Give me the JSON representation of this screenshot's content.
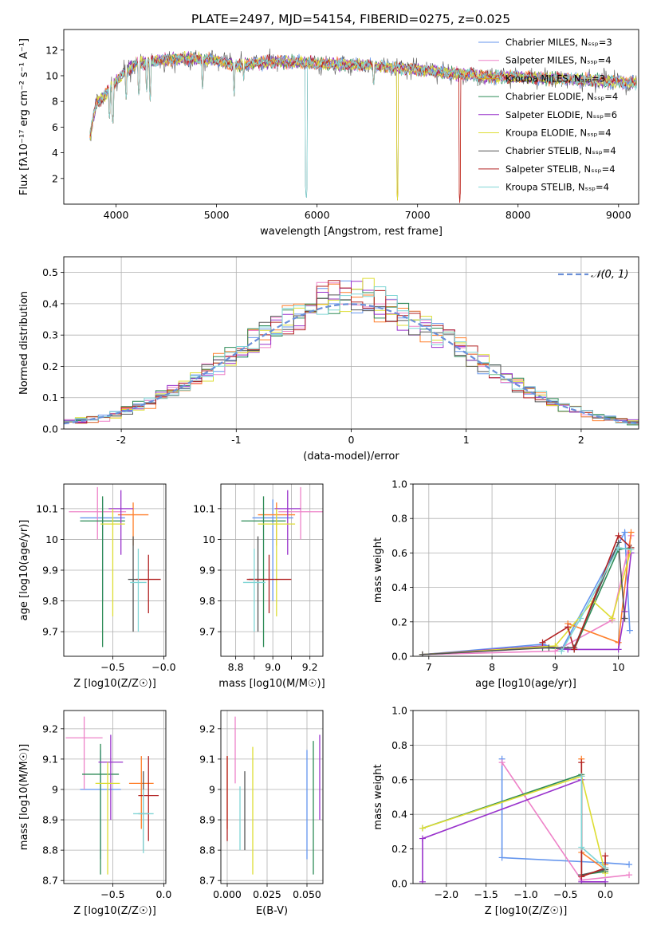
{
  "figure_title": "PLATE=2497, MJD=54154, FIBERID=0275, z=0.025",
  "colors": [
    "#6495ed",
    "#ee82c8",
    "#d2a01e",
    "#2e8b57",
    "#9932cc",
    "#dddd33",
    "#555555",
    "#b22222",
    "#7fd5d5"
  ],
  "colors_extra": {
    "orange": "#ff7f2a",
    "normal_curve": "#6a8fd8",
    "grid": "#b0b0b0"
  },
  "chart_data": [
    {
      "id": "spectrum",
      "type": "line",
      "title": "PLATE=2497, MJD=54154, FIBERID=0275, z=0.025",
      "xlabel": "wavelength [Angstrom, rest frame]",
      "ylabel": "Flux [fλ10⁻¹⁷ erg cm⁻² s⁻¹ A⁻¹]",
      "xlim": [
        3480,
        9200
      ],
      "ylim": [
        0,
        13.6
      ],
      "xticks": [
        4000,
        5000,
        6000,
        7000,
        8000,
        9000
      ],
      "yticks": [
        2,
        4,
        6,
        8,
        10,
        12
      ],
      "grid": false,
      "legend_loc": "upper right",
      "wavelength_range": [
        3740,
        9180
      ],
      "series": [
        {
          "name": "Chabrier MILES, N_SSP=3"
        },
        {
          "name": "Salpeter MILES, N_SSP=4"
        },
        {
          "name": "Kroupa MILES, N_SSP=3"
        },
        {
          "name": "Chabrier ELODIE, N_SSP=4"
        },
        {
          "name": "Salpeter ELODIE, N_SSP=6"
        },
        {
          "name": "Kroupa ELODIE, N_SSP=4"
        },
        {
          "name": "Chabrier STELIB, N_SSP=4"
        },
        {
          "name": "Salpeter STELIB, N_SSP=4"
        },
        {
          "name": "Kroupa STELIB, N_SSP=4"
        }
      ],
      "continuum": [
        [
          3740,
          5.2
        ],
        [
          3800,
          7.8
        ],
        [
          3900,
          8.6
        ],
        [
          4000,
          9.6
        ],
        [
          4100,
          10.3
        ],
        [
          4200,
          10.9
        ],
        [
          4300,
          11.0
        ],
        [
          4400,
          11.2
        ],
        [
          4600,
          11.3
        ],
        [
          4800,
          11.3
        ],
        [
          5000,
          11.2
        ],
        [
          5200,
          10.8
        ],
        [
          5400,
          11.0
        ],
        [
          5600,
          11.1
        ],
        [
          5900,
          11.0
        ],
        [
          6200,
          10.9
        ],
        [
          6500,
          10.8
        ],
        [
          6800,
          10.6
        ],
        [
          7000,
          10.5
        ],
        [
          7300,
          10.2
        ],
        [
          7500,
          10.1
        ],
        [
          7700,
          9.9
        ],
        [
          8000,
          9.9
        ],
        [
          8300,
          9.8
        ],
        [
          8600,
          9.7
        ],
        [
          8900,
          9.6
        ],
        [
          9180,
          9.4
        ]
      ],
      "dips": [
        [
          3934,
          6.5
        ],
        [
          3968,
          6.0
        ],
        [
          4101,
          8.0
        ],
        [
          4227,
          8.2
        ],
        [
          4304,
          8.6
        ],
        [
          4340,
          8.0
        ],
        [
          4861,
          8.8
        ],
        [
          5175,
          8.4
        ],
        [
          5270,
          9.6
        ],
        [
          5893,
          0.2
        ],
        [
          6563,
          9.0
        ],
        [
          6800,
          0.3
        ],
        [
          7420,
          0.1
        ],
        [
          7600,
          9.2
        ],
        [
          8542,
          9.0
        ],
        [
          8662,
          9.1
        ]
      ]
    },
    {
      "id": "residuals",
      "type": "histogram",
      "xlabel": "(data-model)/error",
      "ylabel": "Normed distribution",
      "xlim": [
        -2.5,
        2.5
      ],
      "ylim": [
        0,
        0.55
      ],
      "xticks": [
        -2,
        -1,
        0,
        1,
        2
      ],
      "yticks": [
        0.0,
        0.1,
        0.2,
        0.3,
        0.4,
        0.5
      ],
      "grid": true,
      "legend_loc": "upper right",
      "normal_label": "𝒩(0, 1)",
      "bin_edges_start": -2.6,
      "bin_width": 0.1,
      "n_bins": 52
    },
    {
      "id": "age_vs_Z",
      "type": "scatter_errorbar",
      "xlabel": "Z [log10(Z/Z☉)]",
      "ylabel": "age  [log10(age/yr)]",
      "xlim": [
        -0.98,
        0.02
      ],
      "ylim": [
        9.62,
        10.18
      ],
      "xticks": [
        -0.5,
        -0.0
      ],
      "xticklabels": [
        "−0.5",
        "−0.0"
      ],
      "yticks": [
        9.7,
        9.8,
        9.9,
        10.0,
        10.1
      ],
      "grid": true,
      "points": [
        {
          "x": -0.6,
          "y": 10.07,
          "xerr": 0.22,
          "ylo": 9.8,
          "yhi": 10.13
        },
        {
          "x": -0.65,
          "y": 10.09,
          "xerr": 0.28,
          "ylo": 10.0,
          "yhi": 10.17
        },
        {
          "x": -0.3,
          "y": 10.08,
          "xerr": 0.15,
          "ylo": 9.98,
          "yhi": 10.12
        },
        {
          "x": -0.6,
          "y": 10.06,
          "xerr": 0.22,
          "ylo": 9.65,
          "yhi": 10.14
        },
        {
          "x": -0.42,
          "y": 10.1,
          "xerr": 0.12,
          "ylo": 9.95,
          "yhi": 10.16
        },
        {
          "x": -0.5,
          "y": 10.05,
          "xerr": 0.12,
          "ylo": 9.75,
          "yhi": 10.1
        },
        {
          "x": -0.3,
          "y": 9.87,
          "xerr": 0.05,
          "ylo": 9.7,
          "yhi": 10.01
        },
        {
          "x": -0.15,
          "y": 9.87,
          "xerr": 0.12,
          "ylo": 9.76,
          "yhi": 9.95
        },
        {
          "x": -0.25,
          "y": 9.86,
          "xerr": 0.08,
          "ylo": 9.7,
          "yhi": 9.97
        }
      ]
    },
    {
      "id": "age_vs_mass",
      "type": "scatter_errorbar",
      "xlabel": "mass [log10(M/M☉)]",
      "ylabel": "",
      "xlim": [
        8.72,
        9.27
      ],
      "ylim": [
        9.62,
        10.18
      ],
      "xticks": [
        8.8,
        8.9,
        9.0,
        9.1,
        9.2
      ],
      "xticklabels": [
        "8.8",
        "",
        "9.0",
        "",
        "9.2"
      ],
      "yticks": [
        9.7,
        9.8,
        9.9,
        10.0,
        10.1
      ],
      "grid": true,
      "points": [
        {
          "x": 9.0,
          "y": 10.07,
          "xerr": 0.11,
          "ylo": 9.8,
          "yhi": 10.13
        },
        {
          "x": 9.15,
          "y": 10.09,
          "xerr": 0.12,
          "ylo": 10.0,
          "yhi": 10.17
        },
        {
          "x": 9.02,
          "y": 10.08,
          "xerr": 0.1,
          "ylo": 9.98,
          "yhi": 10.12
        },
        {
          "x": 8.95,
          "y": 10.06,
          "xerr": 0.12,
          "ylo": 9.65,
          "yhi": 10.14
        },
        {
          "x": 9.08,
          "y": 10.1,
          "xerr": 0.07,
          "ylo": 9.95,
          "yhi": 10.16
        },
        {
          "x": 9.02,
          "y": 10.05,
          "xerr": 0.1,
          "ylo": 9.75,
          "yhi": 10.1
        },
        {
          "x": 8.92,
          "y": 9.87,
          "xerr": 0.05,
          "ylo": 9.7,
          "yhi": 10.01
        },
        {
          "x": 8.98,
          "y": 9.87,
          "xerr": 0.12,
          "ylo": 9.76,
          "yhi": 9.95
        },
        {
          "x": 8.9,
          "y": 9.86,
          "xerr": 0.06,
          "ylo": 9.7,
          "yhi": 9.97
        }
      ]
    },
    {
      "id": "mass_weight_vs_age",
      "type": "line",
      "xlabel": "age  [log10(age/yr)]",
      "ylabel": "mass weight",
      "xlim": [
        6.75,
        10.32
      ],
      "ylim": [
        0,
        1.0
      ],
      "xticks": [
        7,
        8,
        9,
        10
      ],
      "yticks": [
        0.0,
        0.2,
        0.4,
        0.6,
        0.8,
        1.0
      ],
      "grid": true,
      "series": [
        {
          "x": [
            6.9,
            8.8,
            9.1,
            10.1,
            10.18
          ],
          "y": [
            0.01,
            0.07,
            0.04,
            0.72,
            0.15
          ]
        },
        {
          "x": [
            6.9,
            9.0,
            9.9,
            10.2
          ],
          "y": [
            0.01,
            0.03,
            0.21,
            0.7
          ]
        },
        {
          "x": [
            9.2,
            10.0,
            10.2
          ],
          "y": [
            0.19,
            0.08,
            0.72
          ]
        },
        {
          "x": [
            6.9,
            8.8,
            9.3,
            10.0,
            10.2
          ],
          "y": [
            0.01,
            0.05,
            0.04,
            0.62,
            0.63
          ]
        },
        {
          "x": [
            6.9,
            8.8,
            9.2,
            10.0,
            10.1,
            10.2
          ],
          "y": [
            0.01,
            0.06,
            0.04,
            0.04,
            0.26,
            0.6
          ]
        },
        {
          "x": [
            6.9,
            9.0,
            9.6,
            9.9,
            10.2
          ],
          "y": [
            0.01,
            0.06,
            0.32,
            0.22,
            0.62
          ]
        },
        {
          "x": [
            6.9,
            8.9,
            9.3,
            10.0,
            10.1
          ],
          "y": [
            0.01,
            0.05,
            0.05,
            0.66,
            0.22
          ]
        },
        {
          "x": [
            8.8,
            9.2,
            9.3,
            10.0,
            10.2
          ],
          "y": [
            0.08,
            0.17,
            0.04,
            0.7,
            0.63
          ]
        },
        {
          "x": [
            9.1,
            9.4,
            10.0,
            10.2
          ],
          "y": [
            0.03,
            0.22,
            0.63,
            0.62
          ]
        }
      ]
    },
    {
      "id": "mass_vs_Z",
      "type": "scatter_errorbar",
      "xlabel": "Z [log10(Z/Z☉)]",
      "ylabel": "mass [log10(M/M☉)]",
      "xlim": [
        -0.98,
        0.02
      ],
      "ylim": [
        8.69,
        9.26
      ],
      "xticks": [
        -0.5,
        0.0
      ],
      "xticklabels": [
        "−0.5",
        "0.0"
      ],
      "yticks": [
        8.7,
        8.8,
        8.9,
        9.0,
        9.1,
        9.2
      ],
      "grid": true,
      "points": [
        {
          "x": -0.62,
          "y": 9.0,
          "xerr": 0.2,
          "ylo": 8.77,
          "yhi": 9.13
        },
        {
          "x": -0.78,
          "y": 9.17,
          "xerr": 0.18,
          "ylo": 9.0,
          "yhi": 9.24
        },
        {
          "x": -0.22,
          "y": 9.02,
          "xerr": 0.12,
          "ylo": 8.87,
          "yhi": 9.11
        },
        {
          "x": -0.62,
          "y": 9.05,
          "xerr": 0.18,
          "ylo": 8.72,
          "yhi": 9.15
        },
        {
          "x": -0.52,
          "y": 9.09,
          "xerr": 0.12,
          "ylo": 8.9,
          "yhi": 9.18
        },
        {
          "x": -0.55,
          "y": 9.02,
          "xerr": 0.12,
          "ylo": 8.72,
          "yhi": 9.09
        },
        {
          "x": -0.2,
          "y": 8.92,
          "xerr": 0.05,
          "ylo": 8.8,
          "yhi": 9.06
        },
        {
          "x": -0.15,
          "y": 8.98,
          "xerr": 0.1,
          "ylo": 8.83,
          "yhi": 9.11
        },
        {
          "x": -0.2,
          "y": 8.92,
          "xerr": 0.1,
          "ylo": 8.79,
          "yhi": 9.0
        }
      ]
    },
    {
      "id": "mass_vs_ebv",
      "type": "scatter_errorbar",
      "xlabel": "E(B-V)",
      "ylabel": "",
      "xlim": [
        -0.004,
        0.06
      ],
      "ylim": [
        8.69,
        9.26
      ],
      "xticks": [
        0.0,
        0.025,
        0.05
      ],
      "xticklabels": [
        "0.000",
        "0.025",
        "0.050"
      ],
      "yticks": [
        8.7,
        8.8,
        8.9,
        9.0,
        9.1,
        9.2
      ],
      "grid": true,
      "points": [
        {
          "x": 0.05,
          "ylo": 8.77,
          "yhi": 9.13
        },
        {
          "x": 0.005,
          "ylo": 9.02,
          "yhi": 9.24
        },
        {
          "x": 0.0,
          "ylo": 8.87,
          "yhi": 9.11
        },
        {
          "x": 0.054,
          "ylo": 8.72,
          "yhi": 9.16
        },
        {
          "x": 0.058,
          "ylo": 8.9,
          "yhi": 9.18
        },
        {
          "x": 0.016,
          "ylo": 8.72,
          "yhi": 9.14
        },
        {
          "x": 0.011,
          "ylo": 8.8,
          "yhi": 9.06
        },
        {
          "x": 0.0,
          "ylo": 8.83,
          "yhi": 9.11
        },
        {
          "x": 0.008,
          "ylo": 8.8,
          "yhi": 9.01
        }
      ]
    },
    {
      "id": "mass_weight_vs_Z",
      "type": "line",
      "xlabel": "Z [log10(Z/Z☉)]",
      "ylabel": "mass weight",
      "xlim": [
        -2.42,
        0.42
      ],
      "ylim": [
        0,
        1.0
      ],
      "xticks": [
        -2.0,
        -1.5,
        -1.0,
        -0.5,
        0.0
      ],
      "xticklabels": [
        "−2.0",
        "−1.5",
        "−1.0",
        "−0.5",
        "0.0"
      ],
      "yticks": [
        0.0,
        0.2,
        0.4,
        0.6,
        0.8,
        1.0
      ],
      "grid": true,
      "series": [
        {
          "x": [
            -1.3,
            -1.3,
            0.0,
            0.3
          ],
          "y": [
            0.72,
            0.15,
            0.12,
            0.11
          ]
        },
        {
          "x": [
            -1.3,
            -0.3,
            0.3
          ],
          "y": [
            0.7,
            0.02,
            0.05
          ]
        },
        {
          "x": [
            -0.3,
            -0.3,
            0.0,
            0.0
          ],
          "y": [
            0.72,
            0.18,
            0.08,
            0.11
          ]
        },
        {
          "x": [
            -2.3,
            -0.3,
            -0.3,
            0.0
          ],
          "y": [
            0.32,
            0.63,
            0.05,
            0.07
          ]
        },
        {
          "x": [
            -2.3,
            -2.3,
            -0.3,
            -0.3,
            0.0
          ],
          "y": [
            0.01,
            0.26,
            0.6,
            0.01,
            0.01
          ]
        },
        {
          "x": [
            -2.3,
            -0.3,
            0.0
          ],
          "y": [
            0.32,
            0.62,
            0.06
          ]
        },
        {
          "x": [
            -0.3,
            -0.3,
            0.0
          ],
          "y": [
            0.62,
            0.05,
            0.08
          ]
        },
        {
          "x": [
            -0.3,
            -0.3,
            0.0,
            0.0
          ],
          "y": [
            0.7,
            0.04,
            0.09,
            0.16
          ]
        },
        {
          "x": [
            -0.3,
            -0.3,
            0.0
          ],
          "y": [
            0.62,
            0.21,
            0.09
          ]
        }
      ]
    }
  ]
}
